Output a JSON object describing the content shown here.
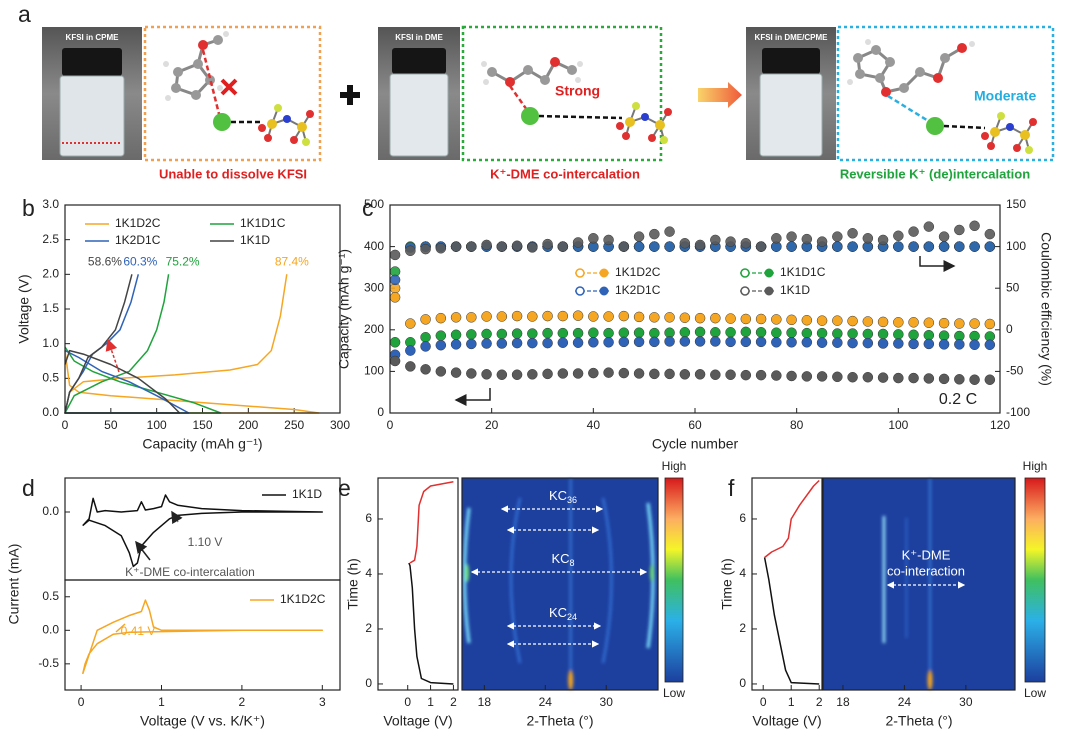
{
  "panel_a": {
    "letter": "a",
    "photos": [
      "KFSI in CPME",
      "KFSI in DME",
      "KFSI in DME/CPME"
    ],
    "bonds": [
      "Strong",
      "Moderate"
    ],
    "captions": [
      "Unable to dissolve KFSI",
      "K⁺-DME co-intercalation",
      "Reversible K⁺ (de)intercalation"
    ]
  },
  "chart_data": [
    {
      "type": "line",
      "panel": "b",
      "xlabel": "Capacity (mAh g⁻¹)",
      "ylabel": "Voltage (V)",
      "xlim": [
        0,
        300
      ],
      "xticks": [
        0,
        50,
        100,
        150,
        200,
        250,
        300
      ],
      "ylim": [
        0,
        3
      ],
      "yticks": [
        {
          "value": 0,
          "label": "0.0"
        },
        0.5,
        {
          "value": 1,
          "label": "1.0"
        },
        1.5,
        {
          "value": 2,
          "label": "2.0"
        },
        2.5,
        {
          "value": 3,
          "label": "3.0"
        }
      ],
      "legend": "upper left",
      "series": [
        {
          "name": "1K1D2C",
          "color": "#f5a623",
          "label": "87.4%",
          "x": [
            0,
            5,
            15,
            50,
            100,
            150,
            200,
            250,
            277,
            0,
            5,
            20,
            60,
            120,
            180,
            210,
            225,
            235,
            242
          ],
          "values": [
            0.9,
            0.4,
            0.3,
            0.25,
            0.2,
            0.15,
            0.1,
            0.05,
            0.0,
            0.0,
            0.3,
            0.45,
            0.5,
            0.55,
            0.62,
            0.7,
            0.9,
            1.4,
            2.0
          ]
        },
        {
          "name": "1K1D1C",
          "color": "#1fa33c",
          "label": "75.2%",
          "x": [
            0,
            10,
            30,
            60,
            100,
            140,
            170,
            0,
            10,
            40,
            70,
            90,
            100,
            108,
            113
          ],
          "values": [
            0.95,
            0.75,
            0.6,
            0.45,
            0.3,
            0.15,
            0.0,
            0.0,
            0.25,
            0.45,
            0.6,
            0.9,
            1.2,
            1.6,
            2.0
          ]
        },
        {
          "name": "1K2D1C",
          "color": "#2f63b8",
          "label": "60.3%",
          "x": [
            0,
            15,
            40,
            70,
            100,
            135,
            0,
            5,
            20,
            30,
            45,
            60,
            72,
            80
          ],
          "values": [
            0.9,
            0.8,
            0.6,
            0.45,
            0.25,
            0.0,
            0.0,
            0.3,
            0.6,
            0.85,
            1.0,
            1.2,
            1.6,
            2.0
          ]
        },
        {
          "name": "1K1D",
          "color": "#444444",
          "label": "58.6%",
          "x": [
            0,
            5,
            20,
            50,
            80,
            110,
            125,
            0,
            5,
            15,
            25,
            40,
            55,
            65,
            73
          ],
          "values": [
            0.7,
            0.9,
            0.85,
            0.7,
            0.5,
            0.2,
            0.0,
            0.0,
            0.3,
            0.5,
            0.8,
            0.95,
            1.2,
            1.6,
            2.0
          ]
        }
      ]
    },
    {
      "type": "scatter",
      "panel": "c",
      "xlabel": "Cycle number",
      "ylabel": "Capacity (mAh g⁻¹)",
      "y2label": "Coulombic efficiency (%)",
      "xlim": [
        0,
        120
      ],
      "xticks": [
        0,
        20,
        40,
        60,
        80,
        100,
        120
      ],
      "ylim": [
        0,
        500
      ],
      "yticks": [
        0,
        100,
        200,
        300,
        400,
        500
      ],
      "y2lim": [
        -100,
        150
      ],
      "y2ticks": [
        -100,
        -50,
        0,
        50,
        100,
        150
      ],
      "annotations": [
        "0.2 C"
      ],
      "legend": "center",
      "x": [
        1,
        4,
        7,
        10,
        13,
        16,
        19,
        22,
        25,
        28,
        31,
        34,
        37,
        40,
        43,
        46,
        49,
        52,
        55,
        58,
        61,
        64,
        67,
        70,
        73,
        76,
        79,
        82,
        85,
        88,
        91,
        94,
        97,
        100,
        103,
        106,
        109,
        112,
        115,
        118
      ],
      "series": [
        {
          "name": "1K1D2C",
          "color": "#f5a623",
          "values": [
            278,
            215,
            225,
            228,
            230,
            230,
            232,
            232,
            233,
            232,
            233,
            233,
            234,
            232,
            232,
            233,
            231,
            230,
            230,
            229,
            228,
            228,
            227,
            226,
            226,
            225,
            224,
            223,
            222,
            222,
            221,
            220,
            219,
            218,
            218,
            217,
            216,
            215,
            215,
            214
          ],
          "ce_values": [
            50,
            99,
            100,
            100,
            100,
            100,
            100,
            100,
            100,
            100,
            100,
            100,
            100,
            100,
            100,
            100,
            100,
            100,
            100,
            100,
            100,
            100,
            100,
            100,
            100,
            100,
            100,
            100,
            100,
            100,
            100,
            100,
            100,
            100,
            100,
            100,
            100,
            100,
            100,
            100
          ]
        },
        {
          "name": "1K1D1C",
          "color": "#1fa33c",
          "values": [
            170,
            170,
            182,
            186,
            188,
            189,
            190,
            190,
            191,
            191,
            192,
            192,
            192,
            193,
            192,
            193,
            193,
            192,
            193,
            194,
            195,
            194,
            194,
            195,
            194,
            193,
            193,
            192,
            192,
            191,
            191,
            190,
            190,
            189,
            188,
            187,
            186,
            185,
            185,
            184
          ],
          "ce_values": [
            70,
            100,
            100,
            100,
            100,
            100,
            100,
            100,
            100,
            100,
            100,
            100,
            100,
            100,
            100,
            100,
            100,
            100,
            100,
            100,
            100,
            100,
            100,
            100,
            100,
            100,
            100,
            100,
            100,
            100,
            100,
            100,
            100,
            100,
            100,
            100,
            100,
            100,
            100,
            100
          ]
        },
        {
          "name": "1K2D1C",
          "color": "#2f63b8",
          "values": [
            140,
            150,
            160,
            163,
            165,
            166,
            167,
            167,
            168,
            168,
            168,
            169,
            169,
            170,
            170,
            171,
            171,
            171,
            172,
            172,
            172,
            172,
            171,
            171,
            171,
            170,
            170,
            170,
            169,
            169,
            168,
            168,
            167,
            167,
            166,
            166,
            165,
            165,
            164,
            164
          ],
          "ce_values": [
            60,
            99,
            100,
            100,
            100,
            100,
            100,
            100,
            100,
            100,
            100,
            100,
            100,
            100,
            100,
            100,
            100,
            100,
            100,
            100,
            100,
            100,
            100,
            100,
            100,
            100,
            100,
            100,
            100,
            100,
            100,
            100,
            100,
            100,
            100,
            100,
            100,
            100,
            100,
            100
          ]
        },
        {
          "name": "1K1D",
          "color": "#5a5a5a",
          "values": [
            125,
            112,
            105,
            100,
            97,
            95,
            93,
            92,
            92,
            93,
            94,
            95,
            95,
            96,
            97,
            96,
            95,
            94,
            94,
            93,
            93,
            92,
            92,
            91,
            91,
            90,
            89,
            88,
            88,
            87,
            86,
            86,
            85,
            84,
            84,
            83,
            82,
            81,
            80,
            80
          ],
          "ce_values": [
            90,
            95,
            97,
            98,
            100,
            100,
            102,
            100,
            101,
            99,
            103,
            100,
            105,
            110,
            108,
            100,
            112,
            115,
            118,
            104,
            102,
            108,
            106,
            104,
            100,
            110,
            112,
            109,
            106,
            112,
            116,
            110,
            108,
            113,
            118,
            124,
            112,
            120,
            125,
            115
          ]
        }
      ]
    },
    {
      "type": "line",
      "panel": "d",
      "ylabel": "Current (mA)",
      "xlim": [
        -0.2,
        3.22
      ],
      "ylim": [
        -1.0,
        0.5
      ],
      "yticks": [
        {
          "value": 0,
          "label": "0.0"
        }
      ],
      "annotations": [
        "1.10 V",
        "K⁺-DME co-intercalation"
      ],
      "legend": "upper right",
      "series": [
        {
          "name": "1K1D",
          "color": "#111111",
          "x": [
            0.02,
            0.1,
            0.15,
            0.2,
            0.3,
            0.5,
            0.7,
            0.75,
            0.8,
            0.9,
            1.0,
            1.05,
            1.1,
            1.2,
            1.5,
            2,
            3,
            3,
            2,
            1.5,
            1.2,
            1.1,
            0.9,
            0.75,
            0.7,
            0.65,
            0.6,
            0.5,
            0.3,
            0.1,
            0.02
          ],
          "values": [
            -0.2,
            -0.1,
            0.2,
            0.0,
            0.02,
            0.0,
            0.02,
            0.15,
            0.03,
            0.05,
            0.08,
            0.25,
            0.15,
            0.1,
            0.05,
            0.02,
            0.0,
            0.0,
            0.0,
            -0.02,
            -0.05,
            -0.1,
            -0.3,
            -0.5,
            -0.75,
            -0.8,
            -0.6,
            -0.35,
            -0.2,
            -0.12,
            -0.2
          ]
        }
      ]
    },
    {
      "type": "line",
      "xlabel": "Voltage (V vs. K/K⁺)",
      "xlim": [
        -0.2,
        3.22
      ],
      "xticks": [
        0,
        1,
        2,
        3
      ],
      "ylim": [
        -0.89,
        0.75
      ],
      "yticks": [
        -0.5,
        {
          "value": 0,
          "label": "0.0"
        },
        0.5
      ],
      "annotations": [
        "0.41 V"
      ],
      "legend": "upper right",
      "series": [
        {
          "name": "1K1D2C",
          "color": "#f5a623",
          "x": [
            0.02,
            0.2,
            0.4,
            0.6,
            0.75,
            0.8,
            0.85,
            0.9,
            1.0,
            1.5,
            2,
            3,
            3,
            2,
            1,
            0.6,
            0.4,
            0.2,
            0.1,
            0.05,
            0.02
          ],
          "values": [
            -0.65,
            0.0,
            0.12,
            0.22,
            0.28,
            0.45,
            0.3,
            0.05,
            0.0,
            0.0,
            0.0,
            0.0,
            0.0,
            0.0,
            -0.02,
            -0.03,
            -0.06,
            -0.2,
            -0.35,
            -0.5,
            -0.65
          ]
        }
      ]
    },
    {
      "type": "line",
      "panel": "e",
      "xlabel": "Voltage (V)",
      "ylabel": "Time (h)",
      "xlim": [
        -1.3,
        2.2
      ],
      "xticks": [
        0,
        1,
        2
      ],
      "ylim": [
        -0.22,
        7.49
      ],
      "yticks": [
        0,
        2,
        4,
        6
      ],
      "series": [
        {
          "color": "#111111",
          "x": [
            2.0,
            1.0,
            0.6,
            0.4,
            0.3,
            0.2,
            0.1,
            0.05
          ],
          "values": [
            0,
            0.05,
            0.2,
            1,
            2,
            3.5,
            4.3,
            4.4
          ]
        },
        {
          "color": "#e03030",
          "x": [
            0.1,
            0.3,
            0.4,
            0.5,
            0.7,
            1.0,
            2.0
          ],
          "values": [
            4.4,
            4.5,
            5.0,
            6.5,
            7.0,
            7.2,
            7.35
          ]
        }
      ]
    },
    {
      "type": "heatmap",
      "xlabel": "2-Theta (°)",
      "xlim": [
        15.8,
        35.1
      ],
      "xticks": [
        18,
        24,
        30
      ],
      "colorbar_high": "High",
      "colorbar_low": "Low",
      "annotations": [
        {
          "text": "KC",
          "sub": "36"
        },
        {
          "text": "KC",
          "sub": "8"
        },
        {
          "text": "KC",
          "sub": "24"
        }
      ]
    },
    {
      "type": "line",
      "panel": "f",
      "xlabel": "Voltage (V)",
      "ylabel": "Time (h)",
      "xlim": [
        -0.4,
        2.1
      ],
      "xticks": [
        0,
        1,
        2
      ],
      "ylim": [
        -0.22,
        7.49
      ],
      "yticks": [
        0,
        2,
        4,
        6
      ],
      "series": [
        {
          "color": "#111111",
          "x": [
            2.0,
            1.0,
            0.8,
            0.6,
            0.4,
            0.2,
            0.05
          ],
          "values": [
            0,
            0.05,
            0.5,
            1.5,
            2.5,
            3.8,
            4.6
          ]
        },
        {
          "color": "#e03030",
          "x": [
            0.05,
            0.3,
            0.7,
            0.9,
            1.0,
            1.3,
            1.8,
            2.0
          ],
          "values": [
            4.6,
            4.8,
            5.0,
            5.3,
            6.0,
            6.5,
            7.2,
            7.4
          ]
        }
      ]
    },
    {
      "type": "heatmap",
      "xlabel": "2-Theta (°)",
      "xlim": [
        16.05,
        34.8
      ],
      "xticks": [
        18,
        24,
        30
      ],
      "colorbar_high": "High",
      "colorbar_low": "Low",
      "annotations": [
        "K⁺-DME",
        "co-interaction"
      ]
    }
  ]
}
